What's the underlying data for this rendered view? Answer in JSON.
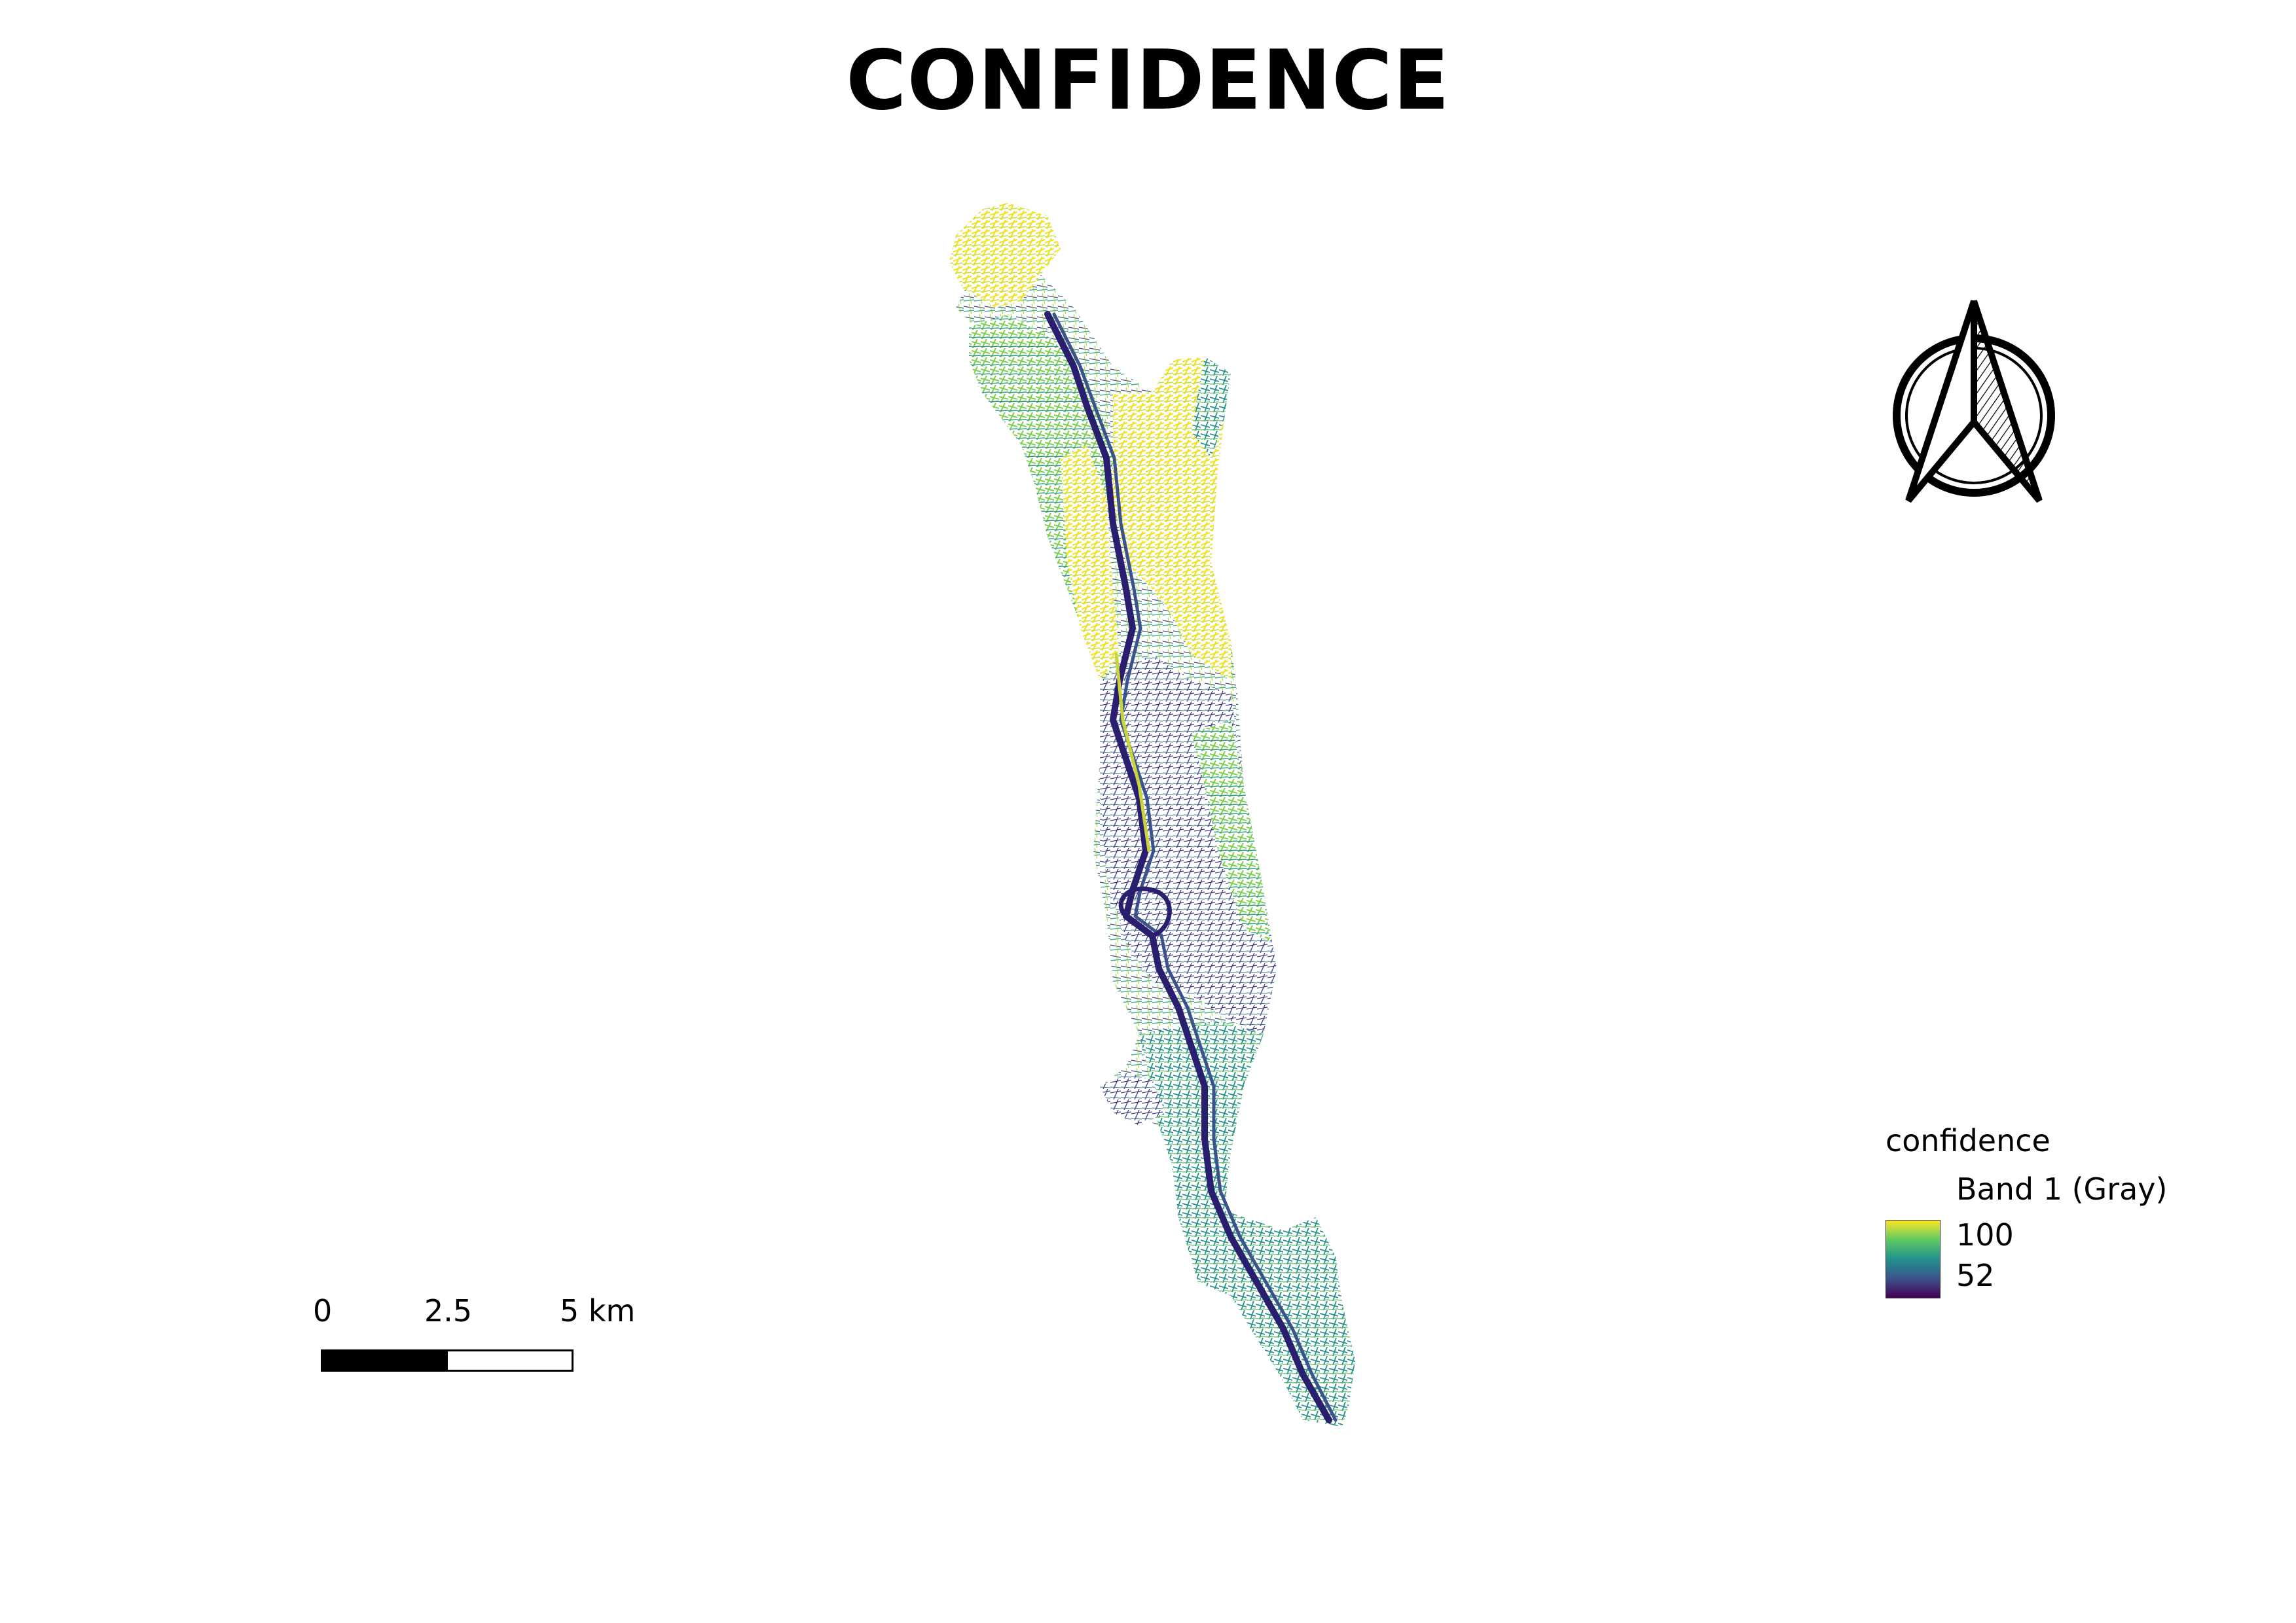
{
  "map": {
    "title": "CONFIDENCE",
    "layer": "confidence",
    "ramp_colors": [
      "#fde725",
      "#5ec962",
      "#21918c",
      "#3b528b",
      "#440154"
    ]
  },
  "legend": {
    "layer_name": "confidence",
    "band_label": "Band 1 (Gray)",
    "max_value": "100",
    "min_value": "52"
  },
  "scalebar": {
    "ticks": [
      "0",
      "2.5",
      "5 km"
    ]
  },
  "north_arrow": {
    "icon": "north-arrow-icon"
  }
}
